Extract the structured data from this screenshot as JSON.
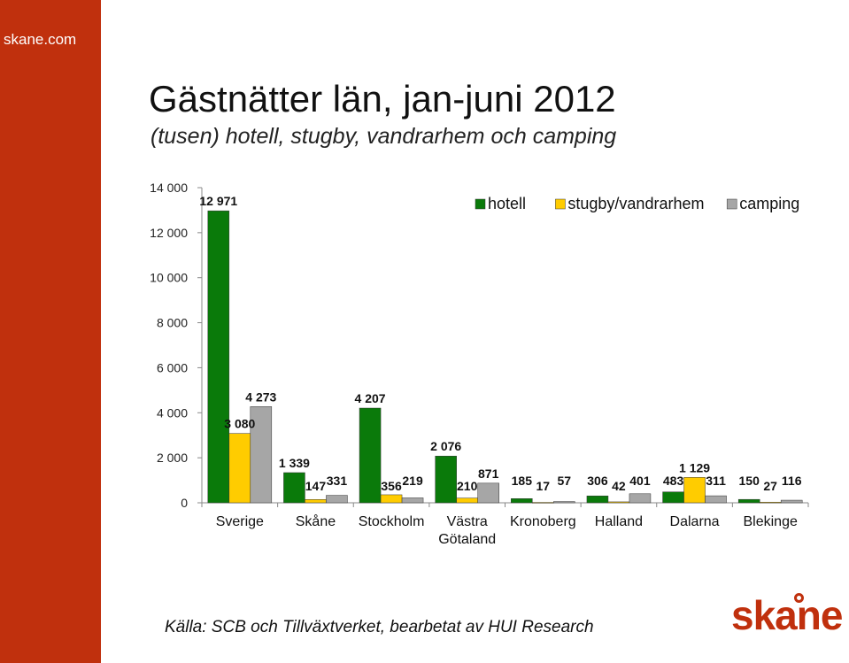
{
  "site": {
    "label": "skane.com",
    "logo_text": "skane"
  },
  "colors": {
    "sidebar": "#c0300d",
    "hotell": "#0a7a0a",
    "stugby": "#ffcc00",
    "camping": "#a6a6a6"
  },
  "source": "Källa: SCB och Tillväxtverket, bearbetat av HUI Research",
  "chart_data": {
    "type": "bar",
    "title": "Gästnätter län, jan-juni 2012",
    "subtitle": "(tusen) hotell, stugby, vandrarhem och camping",
    "xlabel": "",
    "ylabel": "",
    "ylim": [
      0,
      14000
    ],
    "yticks": [
      "0",
      "2 000",
      "4 000",
      "6 000",
      "8 000",
      "10 000",
      "12 000",
      "14 000"
    ],
    "ytick_values": [
      0,
      2000,
      4000,
      6000,
      8000,
      10000,
      12000,
      14000
    ],
    "legend_position": "top-right",
    "categories": [
      "Sverige",
      "Skåne",
      "Stockholm",
      "Västra Götaland",
      "Kronoberg",
      "Halland",
      "Dalarna",
      "Blekinge"
    ],
    "category_lines": [
      [
        "Sverige"
      ],
      [
        "Skåne"
      ],
      [
        "Stockholm"
      ],
      [
        "Västra",
        "Götaland"
      ],
      [
        "Kronoberg"
      ],
      [
        "Halland"
      ],
      [
        "Dalarna"
      ],
      [
        "Blekinge"
      ]
    ],
    "series": [
      {
        "name": "hotell",
        "color": "#0a7a0a",
        "values": [
          12971,
          1339,
          4207,
          2076,
          185,
          306,
          483,
          150
        ],
        "labels": [
          "12 971",
          "1 339",
          "4 207",
          "2 076",
          "185",
          "306",
          "483",
          "150"
        ]
      },
      {
        "name": "stugby/vandrarhem",
        "color": "#ffcc00",
        "values": [
          3080,
          147,
          356,
          210,
          17,
          42,
          1129,
          27
        ],
        "labels": [
          "3 080",
          "147",
          "356",
          "210",
          "17",
          "42",
          "1 129",
          "27"
        ]
      },
      {
        "name": "camping",
        "color": "#a6a6a6",
        "values": [
          4273,
          331,
          219,
          871,
          57,
          401,
          311,
          116
        ],
        "labels": [
          "4 273",
          "331",
          "219",
          "871",
          "57",
          "401",
          "311",
          "116"
        ]
      }
    ]
  }
}
